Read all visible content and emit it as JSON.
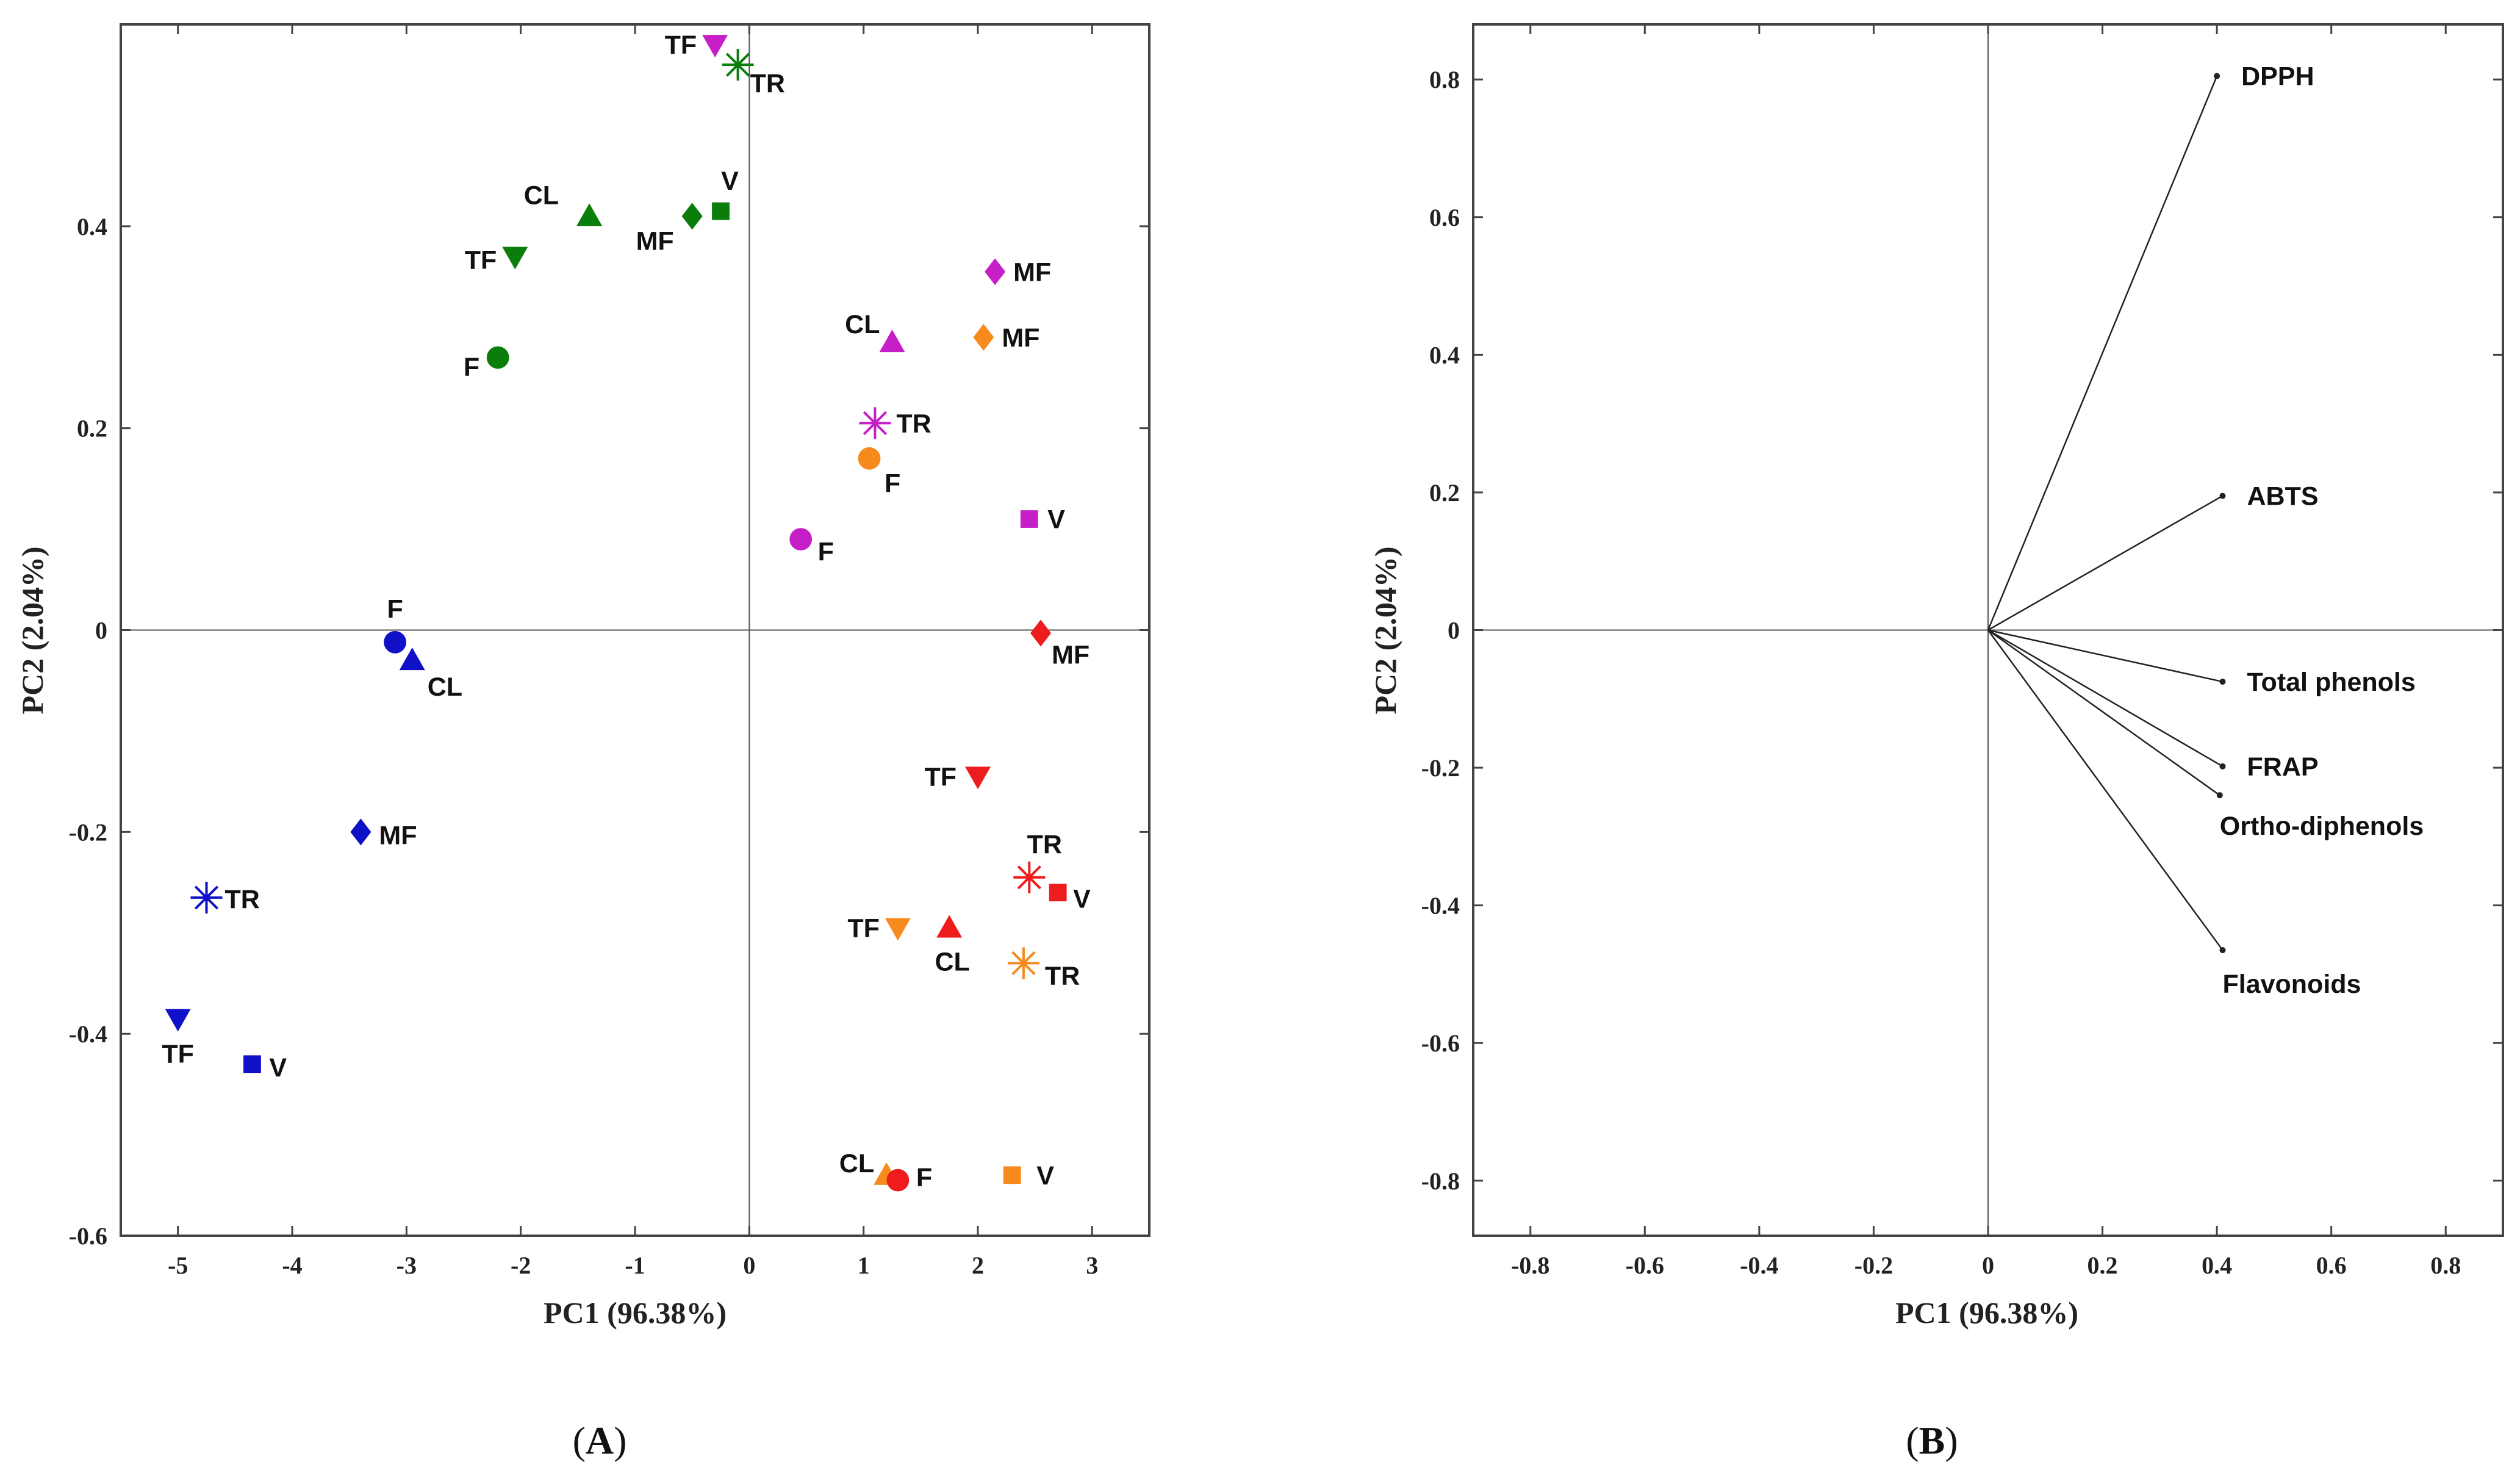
{
  "chart_data": [
    {
      "panel": "A",
      "type": "scatter",
      "title": "",
      "xlabel": "PC1 (96.38%)",
      "ylabel": "PC2 (2.04%)",
      "xlim": [
        -5.5,
        3.5
      ],
      "ylim": [
        -0.6,
        0.6
      ],
      "xticks": [
        -5,
        -4,
        -3,
        -2,
        -1,
        0,
        1,
        2,
        3
      ],
      "yticks": [
        -0.6,
        -0.4,
        -0.2,
        0,
        0.2,
        0.4
      ],
      "xtick_labels": [
        "-5",
        "-4",
        "-3",
        "-2",
        "-1",
        "0",
        "1",
        "2",
        "3"
      ],
      "ytick_labels": [
        "-0.6",
        "-0.4",
        "-0.2",
        "0",
        "0.2",
        "0.4"
      ],
      "grid": false,
      "series": [
        {
          "name": "green",
          "color": "#0a7d0a",
          "points": [
            {
              "label": "TR",
              "marker": "star",
              "x": -0.1,
              "y": 0.56
            },
            {
              "label": "CL",
              "marker": "triangle-up",
              "x": -1.4,
              "y": 0.41
            },
            {
              "label": "MF",
              "marker": "diamond",
              "x": -0.5,
              "y": 0.41
            },
            {
              "label": "V",
              "marker": "square",
              "x": -0.25,
              "y": 0.415
            },
            {
              "label": "TF",
              "marker": "triangle-down",
              "x": -2.05,
              "y": 0.37
            },
            {
              "label": "F",
              "marker": "circle",
              "x": -2.2,
              "y": 0.27
            }
          ]
        },
        {
          "name": "magenta",
          "color": "#c71fc7",
          "points": [
            {
              "label": "TF",
              "marker": "triangle-down",
              "x": -0.3,
              "y": 0.58
            },
            {
              "label": "MF",
              "marker": "diamond",
              "x": 2.15,
              "y": 0.355
            },
            {
              "label": "CL",
              "marker": "triangle-up",
              "x": 1.25,
              "y": 0.285
            },
            {
              "label": "TR",
              "marker": "star",
              "x": 1.1,
              "y": 0.205
            },
            {
              "label": "V",
              "marker": "square",
              "x": 2.45,
              "y": 0.11
            },
            {
              "label": "F",
              "marker": "circle",
              "x": 0.45,
              "y": 0.09
            }
          ]
        },
        {
          "name": "orange",
          "color": "#f78a1d",
          "points": [
            {
              "label": "MF",
              "marker": "diamond",
              "x": 2.05,
              "y": 0.29
            },
            {
              "label": "F",
              "marker": "circle",
              "x": 1.05,
              "y": 0.17
            },
            {
              "label": "TF",
              "marker": "triangle-down",
              "x": 1.3,
              "y": -0.295
            },
            {
              "label": "TR",
              "marker": "star",
              "x": 2.4,
              "y": -0.33
            },
            {
              "label": "CL",
              "marker": "triangle-up",
              "x": 1.2,
              "y": -0.54
            },
            {
              "label": "V",
              "marker": "square",
              "x": 2.3,
              "y": -0.54
            }
          ]
        },
        {
          "name": "red",
          "color": "#ee1c1c",
          "points": [
            {
              "label": "MF",
              "marker": "diamond",
              "x": 2.55,
              "y": -0.003
            },
            {
              "label": "TF",
              "marker": "triangle-down",
              "x": 2.0,
              "y": -0.145
            },
            {
              "label": "TR",
              "marker": "star",
              "x": 2.45,
              "y": -0.245
            },
            {
              "label": "V",
              "marker": "square",
              "x": 2.7,
              "y": -0.26
            },
            {
              "label": "CL",
              "marker": "triangle-up",
              "x": 1.75,
              "y": -0.295
            },
            {
              "label": "F",
              "marker": "circle",
              "x": 1.3,
              "y": -0.545
            }
          ]
        },
        {
          "name": "blue",
          "color": "#1010c8",
          "points": [
            {
              "label": "F",
              "marker": "circle",
              "x": -3.1,
              "y": -0.012
            },
            {
              "label": "CL",
              "marker": "triangle-up",
              "x": -2.95,
              "y": -0.03
            },
            {
              "label": "MF",
              "marker": "diamond",
              "x": -3.4,
              "y": -0.2
            },
            {
              "label": "TR",
              "marker": "star",
              "x": -4.75,
              "y": -0.265
            },
            {
              "label": "TF",
              "marker": "triangle-down",
              "x": -5.0,
              "y": -0.385
            },
            {
              "label": "V",
              "marker": "square",
              "x": -4.35,
              "y": -0.43
            }
          ]
        }
      ]
    },
    {
      "panel": "B",
      "type": "biplot-loadings",
      "title": "",
      "xlabel": "PC1 (96.38%)",
      "ylabel": "PC2 (2.04%)",
      "xlim": [
        -0.9,
        0.9
      ],
      "ylim": [
        -0.88,
        0.88
      ],
      "xticks": [
        -0.8,
        -0.6,
        -0.4,
        -0.2,
        0,
        0.2,
        0.4,
        0.6,
        0.8
      ],
      "yticks": [
        -0.8,
        -0.6,
        -0.4,
        -0.2,
        0,
        0.2,
        0.4,
        0.6,
        0.8
      ],
      "xtick_labels": [
        "-0.8",
        "-0.6",
        "-0.4",
        "-0.2",
        "0",
        "0.2",
        "0.4",
        "0.6",
        "0.8"
      ],
      "ytick_labels": [
        "-0.8",
        "-0.6",
        "-0.4",
        "-0.2",
        "0",
        "0.2",
        "0.4",
        "0.6",
        "0.8"
      ],
      "grid": false,
      "vectors": [
        {
          "label": "DPPH",
          "x": 0.4,
          "y": 0.805
        },
        {
          "label": "ABTS",
          "x": 0.41,
          "y": 0.195
        },
        {
          "label": "Total phenols",
          "x": 0.41,
          "y": -0.075
        },
        {
          "label": "FRAP",
          "x": 0.41,
          "y": -0.198
        },
        {
          "label": "Ortho-diphenols",
          "x": 0.405,
          "y": -0.24
        },
        {
          "label": "Flavonoids",
          "x": 0.41,
          "y": -0.465
        }
      ]
    }
  ],
  "panel_tags": {
    "a": {
      "open": "(",
      "letter": "A",
      "close": ")"
    },
    "b": {
      "open": "(",
      "letter": "B",
      "close": ")"
    }
  }
}
